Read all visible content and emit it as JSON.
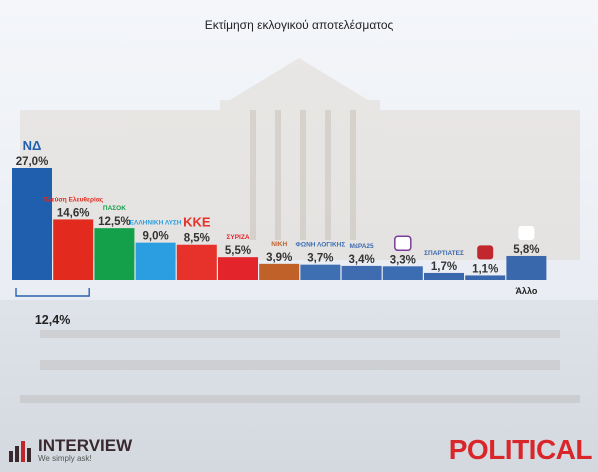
{
  "title": "Εκτίμηση εκλογικού αποτελέσματος",
  "combined_label": "12,4%",
  "footer": {
    "left_brand": "INTERVIEW",
    "left_tagline": "We simply ask!",
    "right_brand": "POLITICAL"
  },
  "colors": {
    "nd": "#1f5fae",
    "pe": "#e32a1e",
    "pasok": "#14a04a",
    "el": "#2a9ee0",
    "kke": "#e6322a",
    "syriza": "#e3252b",
    "niki": "#c0612a",
    "foni": "#3e6fb3",
    "mera": "#3f6bb0",
    "ppe": "#3c6cb2",
    "spartiates": "#3a68ac",
    "ka": "#3a68ac",
    "allo": "#3a68ac"
  },
  "chart_data": {
    "type": "bar",
    "title": "Εκτίμηση εκλογικού αποτελέσματος",
    "categories": [
      "ΝΔ",
      "Πλεύση Ελευθερίας",
      "ΠΑΣΟΚ",
      "Ελληνική Λύση",
      "ΚΚΕ",
      "ΣΥΡΙΖΑ",
      "ΝΙΚΗ",
      "Φωνή Λογικής",
      "ΜέΡΑ25",
      "",
      "ΣΠΑΡΤΙΑΤΕΣ",
      "",
      "Άλλο"
    ],
    "axis_label_last": "Άλλο",
    "values": [
      27.0,
      14.6,
      12.5,
      9.0,
      8.5,
      5.5,
      3.9,
      3.7,
      3.4,
      3.3,
      1.7,
      1.1,
      5.8
    ],
    "value_labels": [
      "27,0%",
      "14,6%",
      "12,5%",
      "9,0%",
      "8,5%",
      "5,5%",
      "3,9%",
      "3,7%",
      "3,4%",
      "3,3%",
      "1,7%",
      "1,1%",
      "5,8%"
    ],
    "logo_texts": [
      "ΝΔ",
      "Πλεύση Ελευθερίας",
      "ΠΑΣΟΚ",
      "ΕΛΛΗΝΙΚΗ ΛΥΣΗ",
      "ΚΚΕ",
      "ΣΥΡΙΖΑ",
      "ΝΙΚΗ",
      "ΦΩΝΗ ΛΟΓΙΚΗΣ",
      "ΜέΡΑ25",
      "",
      "ΣΠΑΡΤΙΑΤΕΣ",
      "",
      ""
    ],
    "bar_colors_keys": [
      "nd",
      "pe",
      "pasok",
      "el",
      "kke",
      "syriza",
      "niki",
      "foni",
      "mera",
      "ppe",
      "spartiates",
      "ka",
      "allo"
    ],
    "annotation": {
      "label": "12,4%",
      "groups_bars": [
        0,
        1
      ]
    },
    "ylim": [
      0,
      27.0
    ],
    "grid": false,
    "legend": "none"
  }
}
